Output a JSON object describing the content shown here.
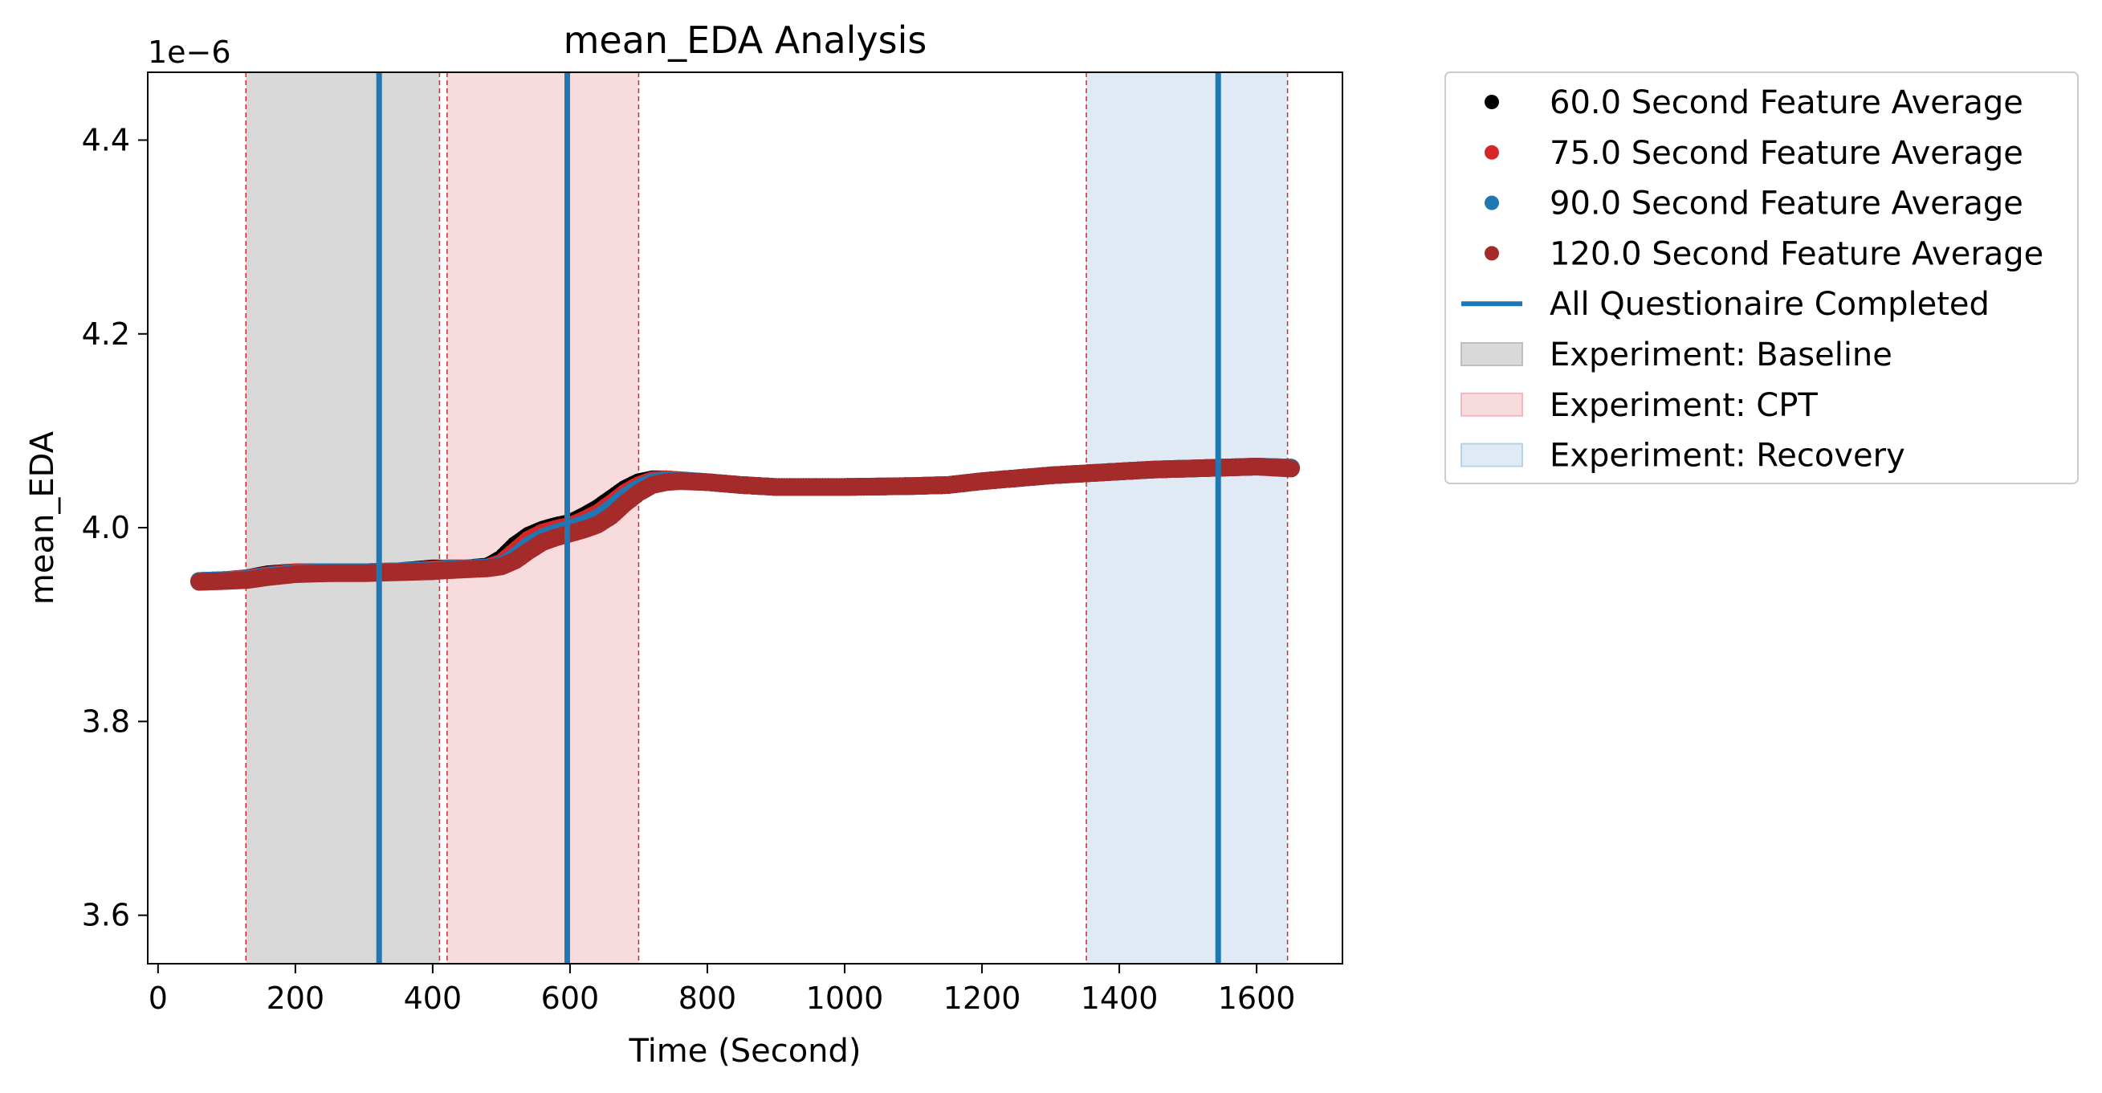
{
  "chart_data": {
    "type": "scatter",
    "title": "mean_EDA Analysis",
    "xlabel": "Time (Second)",
    "ylabel": "mean_EDA",
    "y_offset_label": "1e−6",
    "xlim": [
      -15,
      1725
    ],
    "ylim": [
      3.55,
      4.47
    ],
    "x_ticks": [
      0,
      200,
      400,
      600,
      800,
      1000,
      1200,
      1400,
      1600
    ],
    "x_tick_labels": [
      "0",
      "200",
      "400",
      "600",
      "800",
      "1000",
      "1200",
      "1400",
      "1600"
    ],
    "y_ticks": [
      3.6,
      3.8,
      4.0,
      4.2,
      4.4
    ],
    "y_tick_labels": [
      "3.6",
      "3.8",
      "4.0",
      "4.2",
      "4.4"
    ],
    "grid": false,
    "legend_position": "outside-right",
    "series": [
      {
        "name": "60.0 Second Feature Average",
        "color": "#000000",
        "x": [
          60,
          100,
          130,
          160,
          200,
          250,
          300,
          350,
          400,
          420,
          450,
          480,
          500,
          520,
          540,
          560,
          580,
          600,
          620,
          640,
          660,
          680,
          700,
          720,
          740,
          760,
          800,
          850,
          900,
          1000,
          1100,
          1150,
          1200,
          1300,
          1350,
          1400,
          1450,
          1500,
          1550,
          1600,
          1650
        ],
        "y": [
          3.945,
          3.946,
          3.948,
          3.952,
          3.954,
          3.954,
          3.954,
          3.955,
          3.958,
          3.958,
          3.958,
          3.96,
          3.968,
          3.982,
          3.992,
          3.998,
          4.002,
          4.005,
          4.012,
          4.02,
          4.03,
          4.04,
          4.047,
          4.05,
          4.05,
          4.049,
          4.047,
          4.044,
          4.042,
          4.042,
          4.043,
          4.044,
          4.048,
          4.054,
          4.056,
          4.058,
          4.06,
          4.061,
          4.062,
          4.063,
          4.062
        ]
      },
      {
        "name": "75.0 Second Feature Average",
        "color": "#d62728",
        "x": [
          60,
          100,
          130,
          160,
          200,
          250,
          300,
          350,
          400,
          420,
          450,
          480,
          500,
          520,
          540,
          560,
          580,
          600,
          620,
          640,
          660,
          680,
          700,
          720,
          740,
          760,
          800,
          850,
          900,
          1000,
          1100,
          1150,
          1200,
          1300,
          1350,
          1400,
          1450,
          1500,
          1550,
          1600,
          1650
        ],
        "y": [
          3.945,
          3.946,
          3.948,
          3.951,
          3.954,
          3.954,
          3.954,
          3.955,
          3.957,
          3.958,
          3.958,
          3.959,
          3.964,
          3.976,
          3.988,
          3.995,
          3.999,
          4.002,
          4.008,
          4.015,
          4.025,
          4.036,
          4.044,
          4.049,
          4.05,
          4.049,
          4.047,
          4.044,
          4.042,
          4.042,
          4.043,
          4.044,
          4.048,
          4.054,
          4.056,
          4.058,
          4.06,
          4.061,
          4.062,
          4.063,
          4.062
        ]
      },
      {
        "name": "90.0 Second Feature Average",
        "color": "#1f77b4",
        "x": [
          60,
          100,
          130,
          160,
          200,
          250,
          300,
          350,
          400,
          420,
          450,
          480,
          500,
          520,
          540,
          560,
          580,
          600,
          620,
          640,
          660,
          680,
          700,
          720,
          740,
          760,
          800,
          850,
          900,
          1000,
          1100,
          1150,
          1200,
          1300,
          1350,
          1400,
          1450,
          1500,
          1550,
          1600,
          1650
        ],
        "y": [
          3.945,
          3.946,
          3.947,
          3.95,
          3.953,
          3.954,
          3.954,
          3.955,
          3.956,
          3.957,
          3.958,
          3.959,
          3.961,
          3.97,
          3.982,
          3.99,
          3.995,
          3.999,
          4.004,
          4.01,
          4.02,
          4.032,
          4.041,
          4.047,
          4.049,
          4.049,
          4.047,
          4.044,
          4.042,
          4.042,
          4.043,
          4.044,
          4.048,
          4.054,
          4.056,
          4.058,
          4.06,
          4.061,
          4.062,
          4.063,
          4.062
        ]
      },
      {
        "name": "120.0 Second Feature Average",
        "color": "#a52a2a",
        "x": [
          60,
          100,
          130,
          160,
          200,
          250,
          300,
          350,
          400,
          420,
          450,
          480,
          500,
          520,
          540,
          560,
          580,
          600,
          620,
          640,
          660,
          680,
          700,
          720,
          740,
          760,
          800,
          850,
          900,
          1000,
          1100,
          1150,
          1200,
          1300,
          1350,
          1400,
          1450,
          1500,
          1550,
          1600,
          1650
        ],
        "y": [
          3.944,
          3.945,
          3.946,
          3.949,
          3.952,
          3.953,
          3.953,
          3.954,
          3.955,
          3.956,
          3.957,
          3.958,
          3.96,
          3.966,
          3.976,
          3.985,
          3.99,
          3.994,
          3.998,
          4.003,
          4.012,
          4.025,
          4.036,
          4.044,
          4.047,
          4.048,
          4.047,
          4.044,
          4.042,
          4.042,
          4.043,
          4.044,
          4.048,
          4.054,
          4.056,
          4.058,
          4.06,
          4.061,
          4.062,
          4.063,
          4.061
        ]
      }
    ],
    "vlines": {
      "name": "All Questionaire Completed",
      "color": "#1f77b4",
      "x": [
        322,
        596,
        1544
      ]
    },
    "spans": [
      {
        "name": "Experiment: Baseline",
        "start": 128,
        "end": 410,
        "color": "#bfbfbf",
        "opacity": 0.6
      },
      {
        "name": "Experiment: CPT",
        "start": 421,
        "end": 700,
        "color": "#f2b8bc",
        "opacity": 0.5
      },
      {
        "name": "Experiment: Recovery",
        "start": 1352,
        "end": 1645,
        "color": "#b7d1e6",
        "opacity": 0.45
      }
    ],
    "span_edge_color": "#d62728"
  }
}
